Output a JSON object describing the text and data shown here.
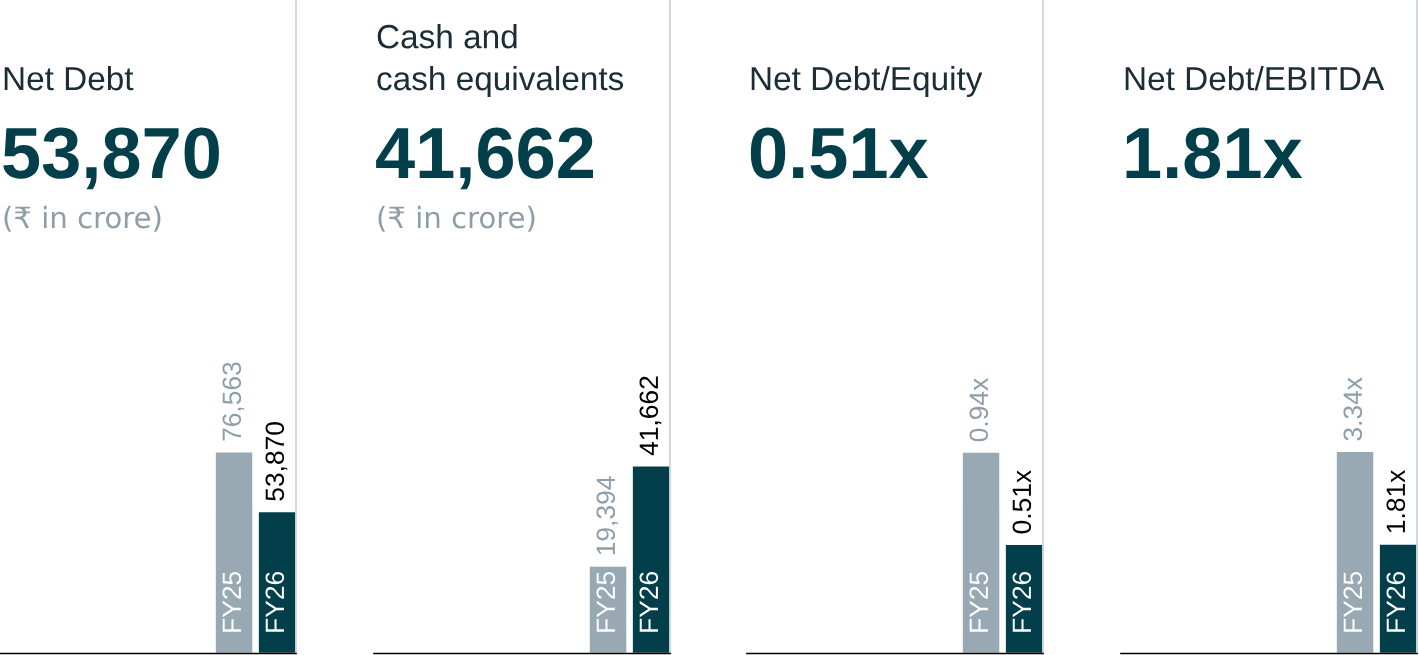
{
  "chart_data": [
    {
      "type": "bar",
      "title": "Net Debt",
      "subtitle": "53,870",
      "annotations": [
        "(₹ in crore)"
      ],
      "categories": [
        "FY25",
        "FY26"
      ],
      "values": [
        76563,
        53870
      ],
      "value_labels": [
        "76,563",
        "53,870"
      ],
      "colors": [
        "#98a9b4",
        "#033f4a"
      ],
      "ylim": [
        0,
        248000
      ]
    },
    {
      "type": "bar",
      "title": "Cash and\ncash equivalents",
      "subtitle": "41,662",
      "annotations": [
        "(₹ in crore)"
      ],
      "categories": [
        "FY25",
        "FY26"
      ],
      "values": [
        19394,
        41662
      ],
      "value_labels": [
        "19,394",
        "41,662"
      ],
      "colors": [
        "#98a9b4",
        "#033f4a"
      ],
      "ylim": [
        0,
        145000
      ]
    },
    {
      "type": "bar",
      "title": "Net Debt/Equity",
      "subtitle": "0.51x",
      "categories": [
        "FY25",
        "FY26"
      ],
      "values": [
        0.94,
        0.51
      ],
      "value_labels": [
        "0.94x",
        "0.51x"
      ],
      "colors": [
        "#98a9b4",
        "#033f4a"
      ],
      "ylim": [
        0,
        3.05
      ]
    },
    {
      "type": "bar",
      "title": "Net Debt/EBITDA",
      "subtitle": "1.81x",
      "categories": [
        "FY25",
        "FY26"
      ],
      "values": [
        3.34,
        1.81
      ],
      "value_labels": [
        "3.34x",
        "1.81x"
      ],
      "colors": [
        "#98a9b4",
        "#033f4a"
      ],
      "ylim": [
        0,
        10.8
      ]
    }
  ]
}
